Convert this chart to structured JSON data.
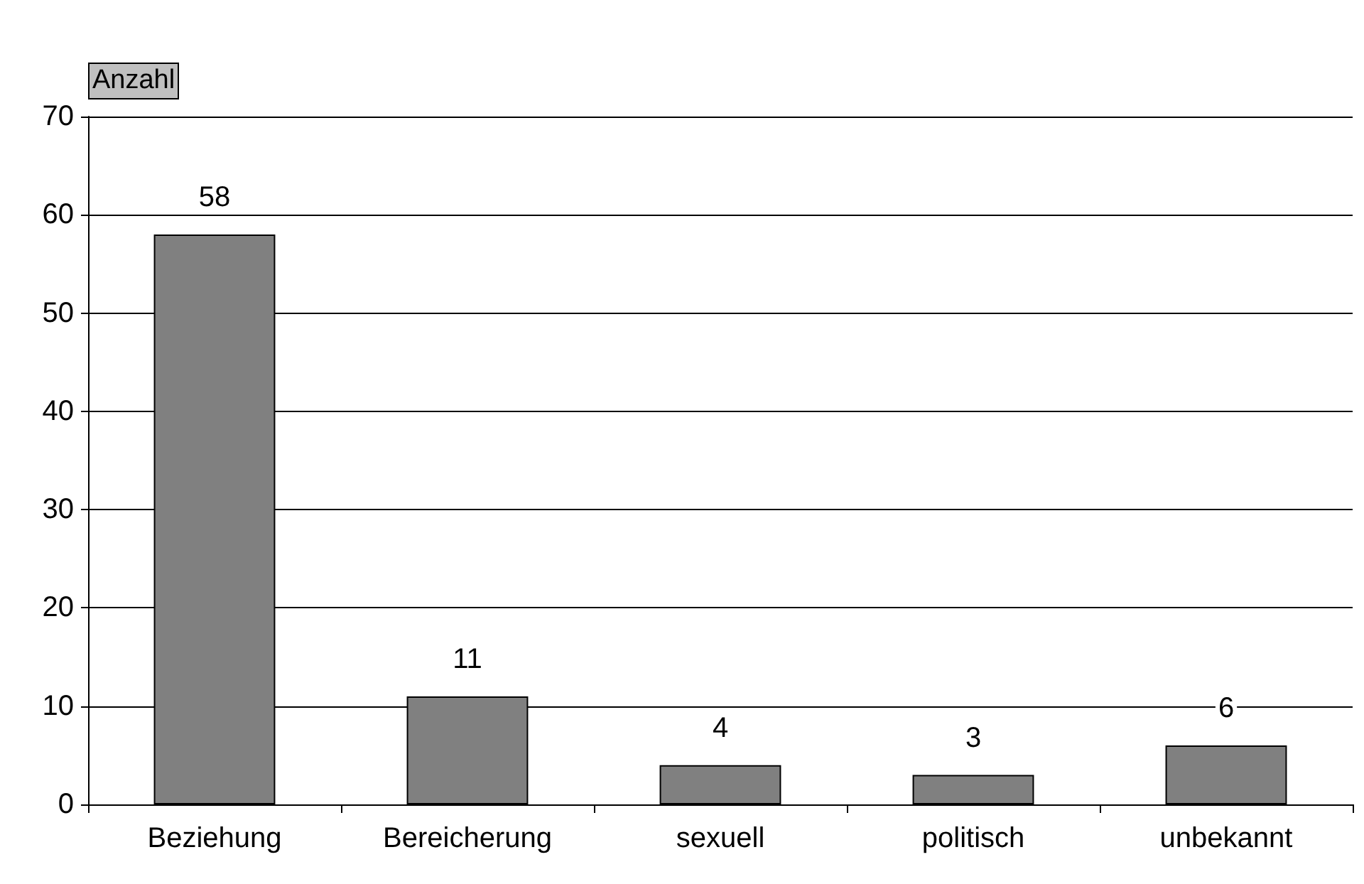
{
  "chart_data": {
    "type": "bar",
    "ylabel": "Anzahl",
    "categories": [
      "Beziehung",
      "Bereicherung",
      "sexuell",
      "politisch",
      "unbekannt"
    ],
    "values": [
      58,
      11,
      4,
      3,
      6
    ],
    "color": "#808080",
    "ylim": [
      0,
      70
    ],
    "yticks": [
      0,
      10,
      20,
      30,
      40,
      50,
      60,
      70
    ],
    "grid": "y",
    "data_labels": true
  }
}
